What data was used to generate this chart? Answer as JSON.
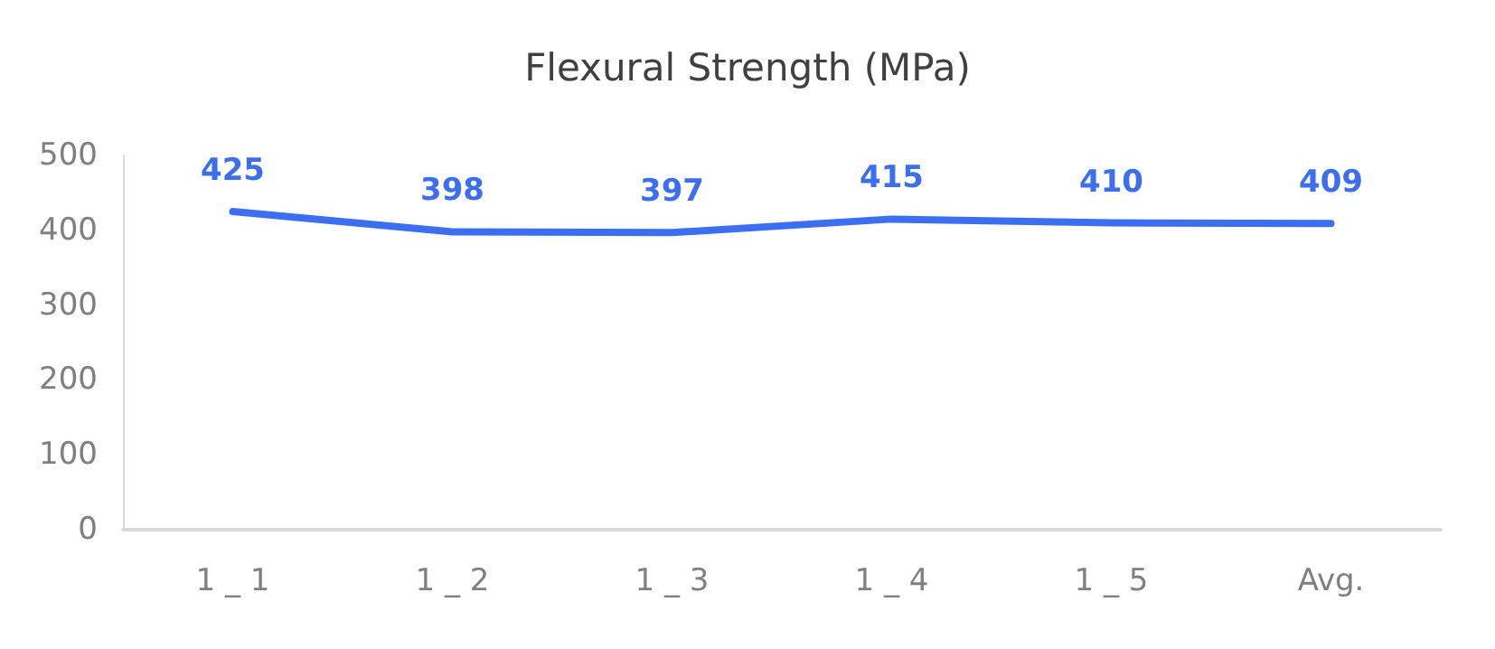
{
  "chart_data": {
    "type": "line",
    "title": "Flexural Strength (MPa)",
    "categories": [
      "1 _ 1",
      "1 _ 2",
      "1 _ 3",
      "1 _ 4",
      "1 _ 5",
      "Avg."
    ],
    "series": [
      {
        "color": "#3b6ff0",
        "values": [
          425,
          398,
          397,
          415,
          410,
          409
        ]
      }
    ],
    "ylim": [
      0,
      500
    ],
    "yticks": [
      0,
      100,
      200,
      300,
      400,
      500
    ],
    "data_labels": true,
    "grid": false,
    "marker": "none",
    "line_style": "solid"
  }
}
